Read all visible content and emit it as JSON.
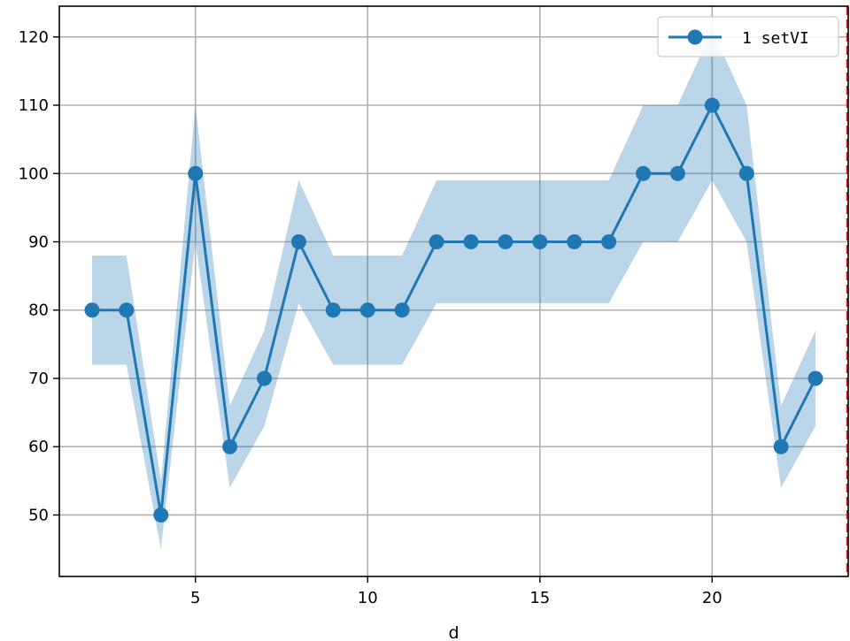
{
  "chart_data": {
    "type": "line",
    "xlabel": "d",
    "ylabel": "",
    "title": "",
    "xlim": [
      1.05,
      23.95
    ],
    "ylim": [
      41.0,
      124.5
    ],
    "xticks": [
      5,
      10,
      15,
      20
    ],
    "yticks": [
      50,
      60,
      70,
      80,
      90,
      100,
      110,
      120
    ],
    "grid": true,
    "legend_position": "top-right",
    "series": [
      {
        "name": "1 setVI",
        "color": "#1f77b4",
        "band_color": "#1f77b4",
        "x": [
          2,
          3,
          4,
          5,
          6,
          7,
          8,
          9,
          10,
          11,
          12,
          13,
          14,
          15,
          16,
          17,
          18,
          19,
          20,
          21,
          22,
          23
        ],
        "y": [
          80,
          80,
          50,
          100,
          60,
          70,
          90,
          80,
          80,
          80,
          90,
          90,
          90,
          90,
          90,
          90,
          100,
          100,
          110,
          100,
          60,
          70
        ],
        "band_upper": [
          88,
          88,
          55,
          110,
          66,
          77,
          99,
          88,
          88,
          88,
          99,
          99,
          99,
          99,
          99,
          99,
          110,
          110,
          121,
          110,
          66,
          77
        ],
        "band_lower": [
          72,
          72,
          45,
          90,
          54,
          63,
          81,
          72,
          72,
          72,
          81,
          81,
          81,
          81,
          81,
          81,
          90,
          90,
          99,
          90,
          54,
          63
        ]
      }
    ],
    "reference_lines": [
      {
        "orientation": "vertical",
        "x": 23.95,
        "color": "#d62728",
        "style": "dashed"
      }
    ]
  }
}
